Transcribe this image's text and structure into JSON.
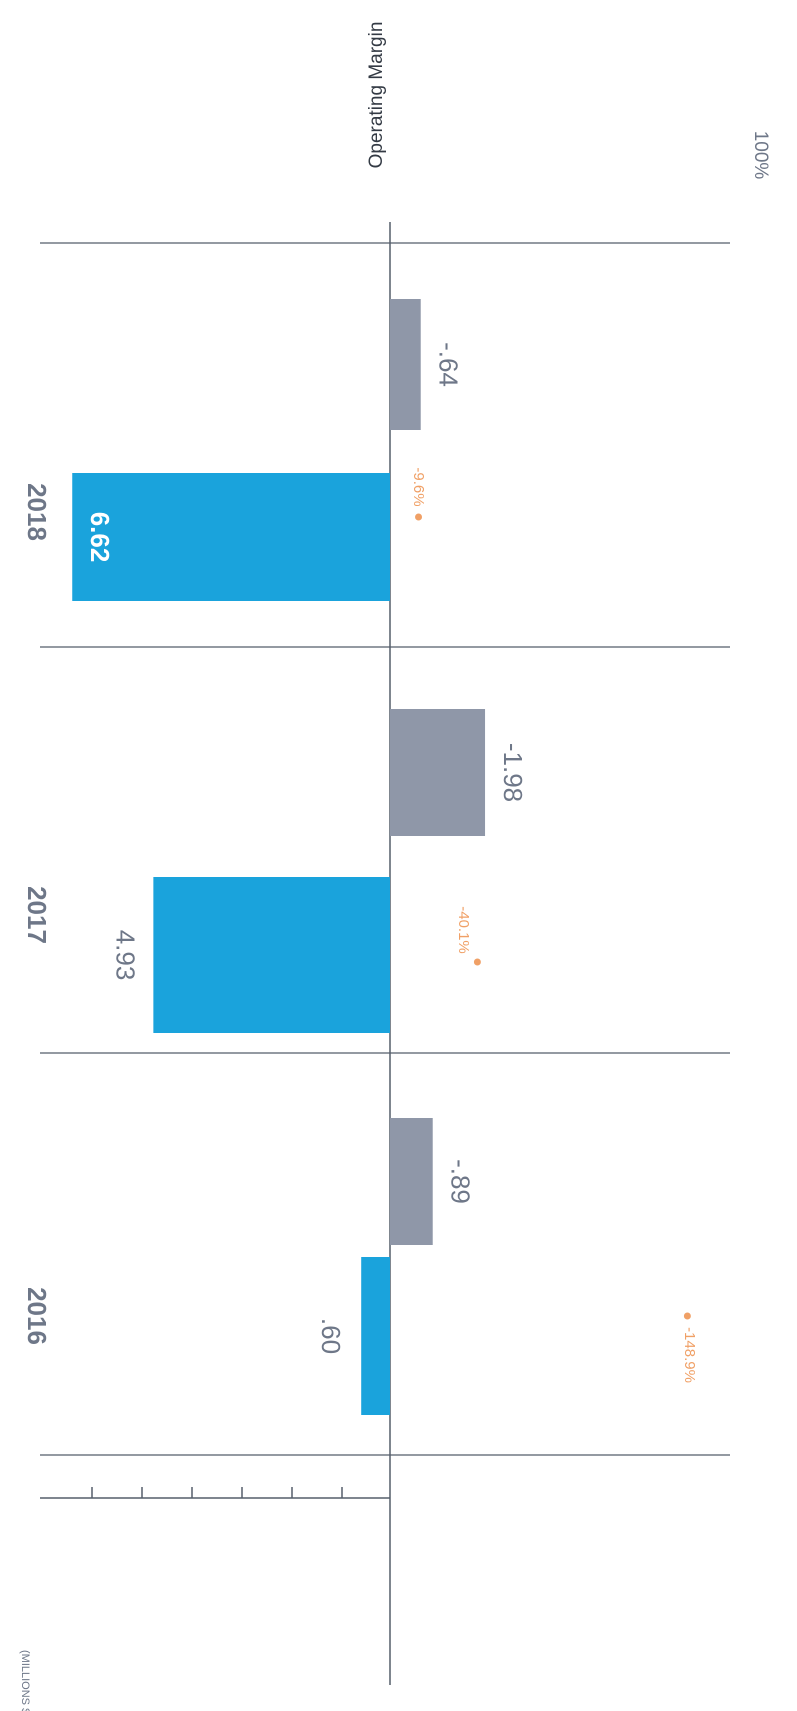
{
  "chart_data": {
    "type": "bar",
    "orientation": "rotated-90",
    "unit_label": "(MILLIONS $USD)",
    "categories": [
      "2016",
      "2017",
      "2018"
    ],
    "series": [
      {
        "values": [
          0.6,
          4.93,
          6.62
        ],
        "labels": [
          ".60",
          "4.93",
          "6.62"
        ]
      },
      {
        "values": [
          -0.89,
          -1.98,
          -0.64
        ],
        "labels": [
          "-.89",
          "-1.98",
          "-.64"
        ]
      }
    ],
    "secondary": {
      "name": "Operating Margin",
      "axis_max_label": "100%",
      "values": [
        -148.9,
        -40.1,
        -9.6
      ],
      "labels": [
        "-148.9%",
        "-40.1%",
        "-9.6%"
      ]
    },
    "ylim": [
      -2.5,
      7.0
    ],
    "grid": false
  },
  "colors": {
    "positive": "#1aa3dc",
    "negative": "#8f97a8",
    "margin": "#f0a066",
    "axis": "#555e6a",
    "text": "#6e7788",
    "inner_label": "#ffffff"
  }
}
